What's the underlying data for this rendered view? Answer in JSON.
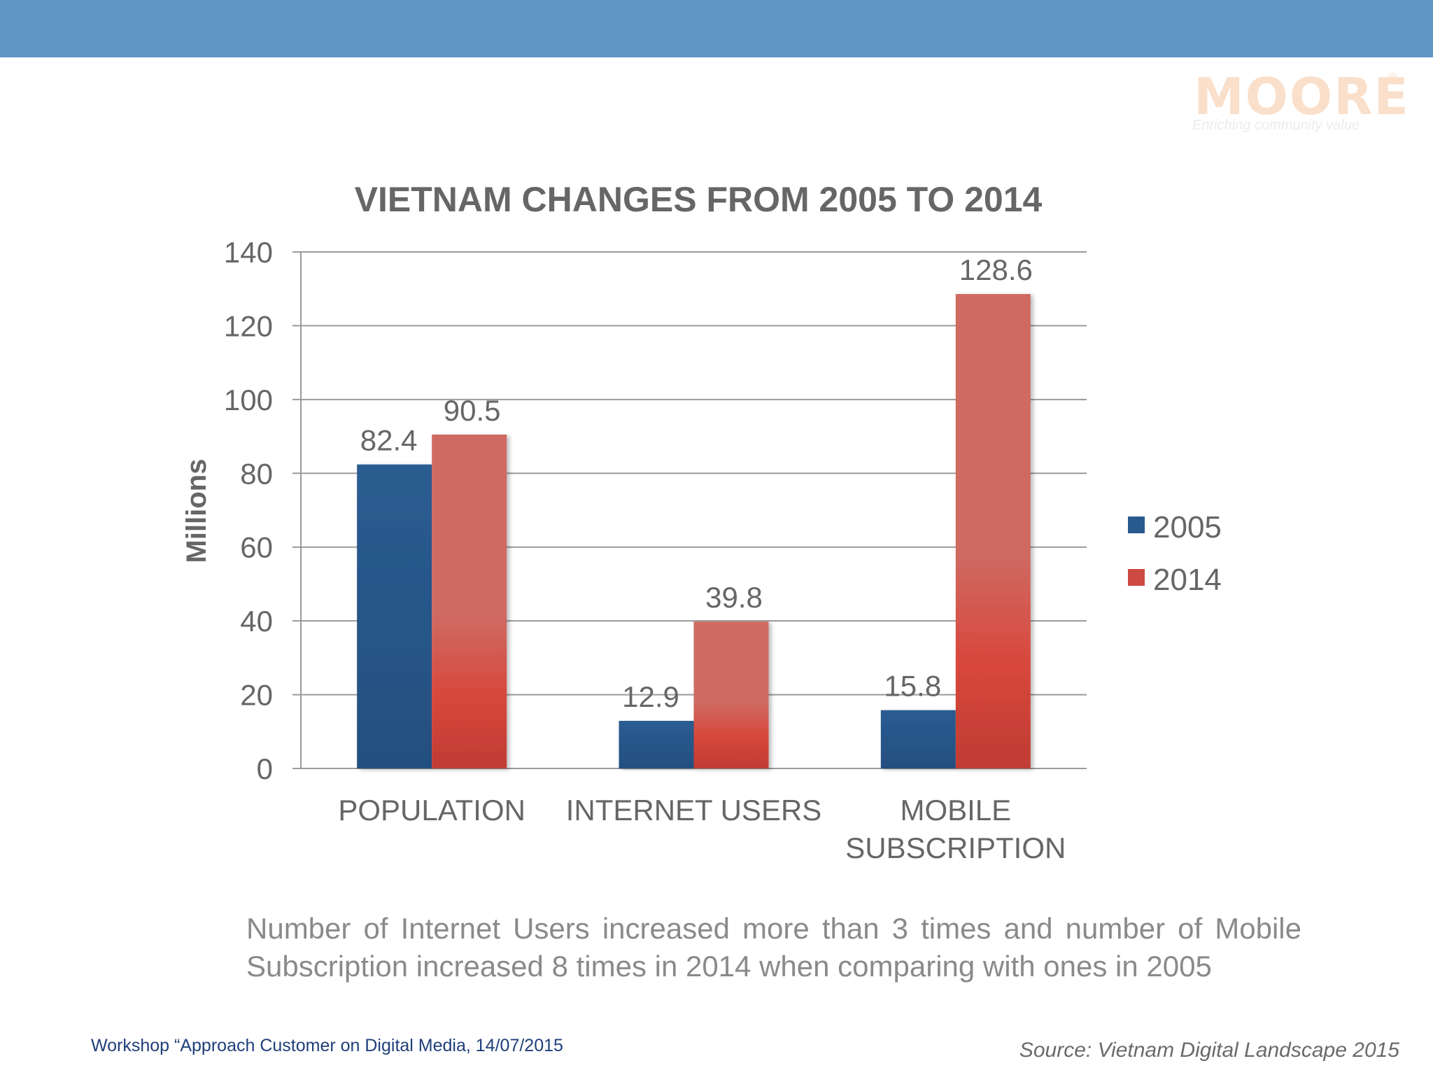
{
  "logo": {
    "brand": "MOORE",
    "registered": "®",
    "tagline": "Enriching community value"
  },
  "chart_data": {
    "type": "bar",
    "title": "VIETNAM CHANGES FROM 2005 TO 2014",
    "xlabel": "",
    "ylabel": "Millions",
    "ylim": [
      0,
      140
    ],
    "yticks": [
      0,
      20,
      40,
      60,
      80,
      100,
      120,
      140
    ],
    "grid": true,
    "legend_position": "right",
    "categories": [
      [
        "POPULATION"
      ],
      [
        "INTERNET USERS"
      ],
      [
        "MOBILE",
        "SUBSCRIPTION"
      ]
    ],
    "series": [
      {
        "name": "2005",
        "color": "#285a8f",
        "values": [
          82.4,
          12.9,
          15.8
        ],
        "labels": [
          "82.4",
          "12.9",
          "15.8"
        ]
      },
      {
        "name": "2014",
        "color": "#cc4a42",
        "values": [
          90.5,
          39.8,
          128.6
        ],
        "labels": [
          "90.5",
          "39.8",
          "128.6"
        ]
      }
    ]
  },
  "summary": "Number of Internet Users increased more than 3 times and number of Mobile Subscription increased 8 times in 2014 when comparing with ones in 2005",
  "footer": {
    "event": "Workshop “Approach Customer on Digital Media, 14/07/2015",
    "source": "Source: Vietnam Digital Landscape 2015"
  }
}
